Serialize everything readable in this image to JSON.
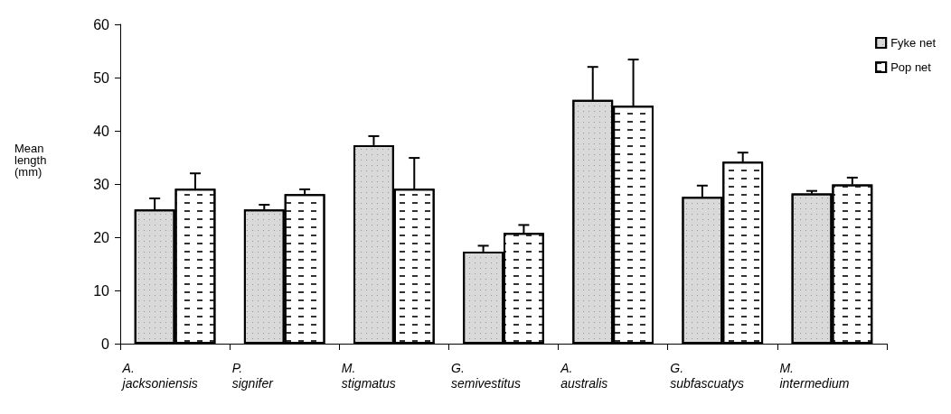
{
  "chart_data": {
    "type": "bar",
    "ylabel": "Mean length (mm)",
    "categories": [
      "A. jacksoniensis",
      "P. signifer",
      "M. stigmatus",
      "G. semivestitus",
      "A. australis",
      "G. subfascuatys",
      "M. intermedium"
    ],
    "series": [
      {
        "name": "Fyke net",
        "color": "#d9d9d9",
        "values": [
          25.2,
          25.2,
          37.3,
          17.3,
          45.8,
          27.6,
          28.2
        ],
        "errors": [
          [
            25.2,
            27.3
          ],
          [
            25.2,
            26.1
          ],
          [
            37.3,
            39.0
          ],
          [
            17.3,
            18.4
          ],
          [
            45.8,
            52.0
          ],
          [
            27.6,
            29.7
          ],
          [
            28.2,
            28.7
          ]
        ]
      },
      {
        "name": "Pop net",
        "color": "#ffffff",
        "values": [
          29.1,
          28.1,
          29.1,
          20.8,
          44.7,
          34.2,
          29.9
        ],
        "errors": [
          [
            29.1,
            32.0
          ],
          [
            28.1,
            29.0
          ],
          [
            29.1,
            34.9
          ],
          [
            20.8,
            22.3
          ],
          [
            44.7,
            53.4
          ],
          [
            34.2,
            35.9
          ],
          [
            29.9,
            31.2
          ]
        ]
      }
    ],
    "ylim": [
      0,
      60
    ],
    "yticks": [
      0,
      10,
      20,
      30,
      40,
      50,
      60
    ],
    "grid": false,
    "legend": "top right"
  }
}
